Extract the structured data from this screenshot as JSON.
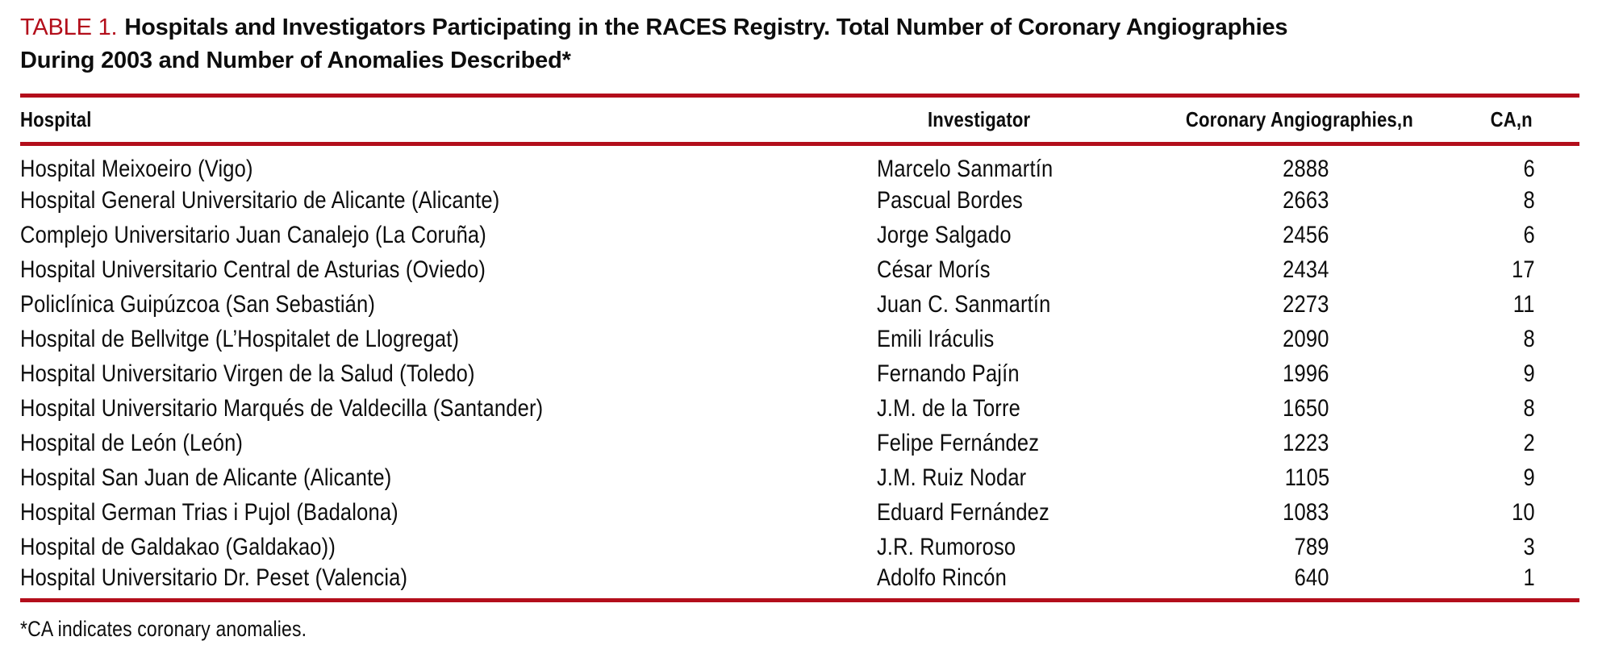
{
  "accent_color": "#B30E1B",
  "caption": {
    "label": "TABLE 1.",
    "title": "Hospitals and Investigators Participating in the RACES Registry. Total Number of Coronary Angiographies During 2003 and Number of Anomalies Described*"
  },
  "table": {
    "columns": [
      "Hospital",
      "Investigator",
      "Coronary Angiographies,n",
      "CA,n"
    ],
    "rows": [
      {
        "hospital": "Hospital Meixoeiro (Vigo)",
        "investigator": "Marcelo Sanmartín",
        "angiographies": "2888",
        "ca": "6"
      },
      {
        "hospital": "Hospital General Universitario de Alicante (Alicante)",
        "investigator": "Pascual Bordes",
        "angiographies": "2663",
        "ca": "8"
      },
      {
        "hospital": "Complejo Universitario Juan Canalejo (La Coruña)",
        "investigator": "Jorge Salgado",
        "angiographies": "2456",
        "ca": "6"
      },
      {
        "hospital": "Hospital Universitario Central de Asturias (Oviedo)",
        "investigator": "César Morís",
        "angiographies": "2434",
        "ca": "17"
      },
      {
        "hospital": "Policlínica Guipúzcoa (San Sebastián)",
        "investigator": "Juan C. Sanmartín",
        "angiographies": "2273",
        "ca": "11"
      },
      {
        "hospital": "Hospital de Bellvitge (L’Hospitalet de Llogregat)",
        "investigator": "Emili Iráculis",
        "angiographies": "2090",
        "ca": "8"
      },
      {
        "hospital": "Hospital Universitario Virgen de la Salud (Toledo)",
        "investigator": "Fernando Pajín",
        "angiographies": "1996",
        "ca": "9"
      },
      {
        "hospital": "Hospital Universitario Marqués de Valdecilla (Santander)",
        "investigator": "J.M. de la Torre",
        "angiographies": "1650",
        "ca": "8"
      },
      {
        "hospital": "Hospital de León (León)",
        "investigator": "Felipe Fernández",
        "angiographies": "1223",
        "ca": "2"
      },
      {
        "hospital": "Hospital San Juan de Alicante (Alicante)",
        "investigator": "J.M. Ruiz Nodar",
        "angiographies": "1105",
        "ca": "9"
      },
      {
        "hospital": "Hospital German Trias i Pujol (Badalona)",
        "investigator": "Eduard Fernández",
        "angiographies": "1083",
        "ca": "10"
      },
      {
        "hospital": "Hospital de Galdakao (Galdakao))",
        "investigator": "J.R. Rumoroso",
        "angiographies": "789",
        "ca": "3"
      },
      {
        "hospital": "Hospital Universitario Dr. Peset (Valencia)",
        "investigator": "Adolfo Rincón",
        "angiographies": "640",
        "ca": "1"
      }
    ],
    "footnote": "*CA indicates coronary anomalies."
  }
}
